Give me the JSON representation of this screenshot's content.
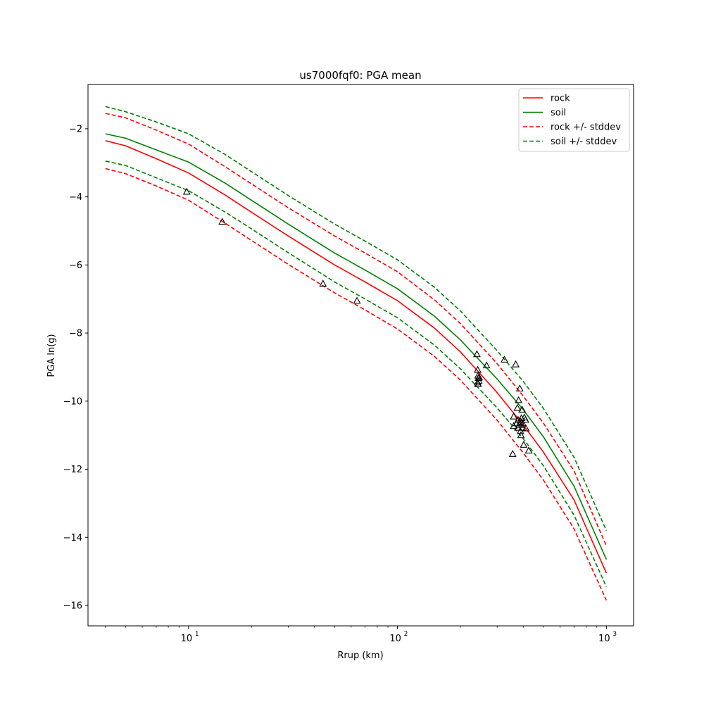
{
  "chart_data": {
    "type": "line",
    "title": "us7000fqf0: PGA mean",
    "xlabel": "Rrup (km)",
    "ylabel": "PGA ln(g)",
    "xscale": "log",
    "xlim": [
      3.3,
      1350
    ],
    "ylim": [
      -16.6,
      -0.7
    ],
    "yticks": [
      -2,
      -4,
      -6,
      -8,
      -10,
      -12,
      -14,
      -16
    ],
    "ytick_labels": [
      "−2",
      "−4",
      "−6",
      "−8",
      "−10",
      "−12",
      "−14",
      "−16"
    ],
    "xticks": [
      {
        "value": 10,
        "base": "10",
        "exp": "1"
      },
      {
        "value": 100,
        "base": "10",
        "exp": "2"
      },
      {
        "value": 1000,
        "base": "10",
        "exp": "3"
      }
    ],
    "grid": false,
    "legend_position": "top-right",
    "legend": [
      {
        "label": "rock",
        "color": "#ff0000",
        "style": "solid"
      },
      {
        "label": "soil",
        "color": "#008000",
        "style": "solid"
      },
      {
        "label": "rock +/- stddev",
        "color": "#ff0000",
        "style": "dashed"
      },
      {
        "label": "soil +/- stddev",
        "color": "#008000",
        "style": "dashed"
      }
    ],
    "x": [
      4,
      5,
      7,
      10,
      15,
      20,
      30,
      50,
      70,
      100,
      150,
      200,
      300,
      400,
      500,
      700,
      1000
    ],
    "series": [
      {
        "name": "rock",
        "color": "#ff0000",
        "style": "solid",
        "values": [
          -2.35,
          -2.5,
          -2.88,
          -3.3,
          -3.95,
          -4.45,
          -5.15,
          -6.0,
          -6.5,
          -7.05,
          -7.85,
          -8.55,
          -9.75,
          -10.7,
          -11.5,
          -12.9,
          -15.05
        ]
      },
      {
        "name": "soil",
        "color": "#008000",
        "style": "solid",
        "values": [
          -2.15,
          -2.28,
          -2.62,
          -2.98,
          -3.6,
          -4.1,
          -4.8,
          -5.65,
          -6.15,
          -6.7,
          -7.5,
          -8.2,
          -9.35,
          -10.25,
          -11.05,
          -12.5,
          -14.65
        ]
      },
      {
        "name": "rock +/- stddev",
        "color": "#ff0000",
        "style": "dashed",
        "values": [
          -1.55,
          -1.68,
          -2.04,
          -2.45,
          -3.12,
          -3.62,
          -4.32,
          -5.15,
          -5.65,
          -6.2,
          -7.02,
          -7.72,
          -8.9,
          -9.85,
          -10.65,
          -12.05,
          -14.25
        ]
      },
      {
        "name": "rock +/- stddev",
        "color": "#ff0000",
        "style": "dashed",
        "values": [
          -3.17,
          -3.32,
          -3.68,
          -4.1,
          -4.78,
          -5.28,
          -5.98,
          -6.82,
          -7.32,
          -7.88,
          -8.68,
          -9.38,
          -10.56,
          -11.52,
          -12.32,
          -13.75,
          -15.85
        ]
      },
      {
        "name": "soil +/- stddev",
        "color": "#008000",
        "style": "dashed",
        "values": [
          -1.35,
          -1.5,
          -1.8,
          -2.15,
          -2.76,
          -3.26,
          -3.96,
          -4.8,
          -5.3,
          -5.85,
          -6.65,
          -7.35,
          -8.52,
          -9.42,
          -10.22,
          -11.65,
          -13.8
        ]
      },
      {
        "name": "soil +/- stddev",
        "color": "#008000",
        "style": "dashed",
        "values": [
          -2.95,
          -3.08,
          -3.44,
          -3.82,
          -4.45,
          -4.94,
          -5.64,
          -6.5,
          -7.0,
          -7.55,
          -8.35,
          -9.05,
          -10.2,
          -11.1,
          -11.9,
          -13.35,
          -15.45
        ]
      }
    ],
    "observations": {
      "marker": "triangle",
      "points": [
        {
          "x": 9.8,
          "y": -3.85
        },
        {
          "x": 14.5,
          "y": -4.73
        },
        {
          "x": 44,
          "y": -6.55
        },
        {
          "x": 64,
          "y": -7.05
        },
        {
          "x": 240,
          "y": -8.62
        },
        {
          "x": 242,
          "y": -9.08
        },
        {
          "x": 243,
          "y": -9.25
        },
        {
          "x": 244,
          "y": -9.32
        },
        {
          "x": 245,
          "y": -9.4
        },
        {
          "x": 243,
          "y": -9.5
        },
        {
          "x": 246,
          "y": -9.3
        },
        {
          "x": 242,
          "y": -9.45
        },
        {
          "x": 267,
          "y": -8.95
        },
        {
          "x": 325,
          "y": -8.78
        },
        {
          "x": 368,
          "y": -8.92
        },
        {
          "x": 385,
          "y": -9.63
        },
        {
          "x": 380,
          "y": -9.97
        },
        {
          "x": 375,
          "y": -10.2
        },
        {
          "x": 395,
          "y": -10.25
        },
        {
          "x": 360,
          "y": -10.45
        },
        {
          "x": 405,
          "y": -10.48
        },
        {
          "x": 392,
          "y": -10.5
        },
        {
          "x": 378,
          "y": -10.55
        },
        {
          "x": 388,
          "y": -10.6
        },
        {
          "x": 410,
          "y": -10.55
        },
        {
          "x": 372,
          "y": -10.65
        },
        {
          "x": 383,
          "y": -10.7
        },
        {
          "x": 360,
          "y": -10.73
        },
        {
          "x": 395,
          "y": -10.78
        },
        {
          "x": 412,
          "y": -10.8
        },
        {
          "x": 388,
          "y": -10.88
        },
        {
          "x": 390,
          "y": -11.0
        },
        {
          "x": 402,
          "y": -11.28
        },
        {
          "x": 425,
          "y": -11.45
        },
        {
          "x": 356,
          "y": -11.55
        },
        {
          "x": 377,
          "y": -10.78
        },
        {
          "x": 398,
          "y": -10.65
        }
      ]
    }
  }
}
